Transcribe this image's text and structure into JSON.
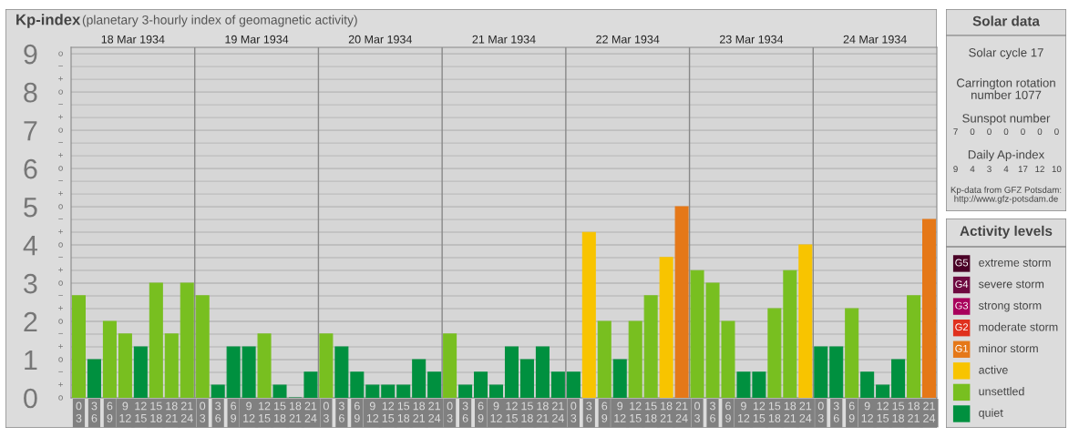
{
  "chart_data": [
    {
      "type": "bar",
      "title": "Kp-index",
      "subtitle": "(planetary 3-hourly index of geomagnetic activity)",
      "categories": [
        "0\n3",
        "3\n6",
        "6\n9",
        "9\n12",
        "12\n15",
        "15\n18",
        "18\n21",
        "21\n24",
        "0\n3",
        "3\n6",
        "6\n9",
        "9\n12",
        "12\n15",
        "15\n18",
        "18\n21",
        "21\n24",
        "0\n3",
        "3\n6",
        "6\n9",
        "9\n12",
        "12\n15",
        "15\n18",
        "18\n21",
        "21\n24",
        "0\n3",
        "3\n6",
        "6\n9",
        "9\n12",
        "12\n15",
        "15\n18",
        "18\n21",
        "21\n24",
        "0\n3",
        "3\n6",
        "6\n9",
        "9\n12",
        "12\n15",
        "15\n18",
        "18\n21",
        "21\n24",
        "0\n3",
        "3\n6",
        "6\n9",
        "9\n12",
        "12\n15",
        "15\n18",
        "18\n21",
        "21\n24",
        "0\n3",
        "3\n6",
        "6\n9",
        "9\n12",
        "12\n15",
        "15\n18",
        "18\n21",
        "21\n24"
      ],
      "annotations": [
        "18 Mar 1934",
        "19 Mar 1934",
        "20 Mar 1934",
        "21 Mar 1934",
        "22 Mar 1934",
        "23 Mar 1934",
        "24 Mar 1934",
        "o",
        "+",
        "−",
        "o",
        "+",
        "−",
        "o",
        "+",
        "−",
        "o",
        "+",
        "−",
        "o",
        "+",
        "−",
        "o",
        "+",
        "−",
        "o",
        "+",
        "−",
        "o",
        "+",
        "−",
        "o",
        "+",
        "−",
        "o"
      ],
      "series": [
        {
          "name": "extreme storm",
          "color": "#4a0026",
          "values": [
            null,
            null,
            null,
            null,
            null,
            null,
            null,
            null,
            null,
            null,
            null,
            null,
            null,
            null,
            null,
            null,
            null,
            null,
            null,
            null,
            null,
            null,
            null,
            null,
            null,
            null,
            null,
            null,
            null,
            null,
            null,
            null,
            null,
            null,
            null,
            null,
            null,
            null,
            null,
            null,
            null,
            null,
            null,
            null,
            null,
            null,
            null,
            null,
            null,
            null,
            null,
            null,
            null,
            null,
            null,
            null
          ]
        },
        {
          "name": "severe storm",
          "color": "#6e0a40",
          "values": [
            null,
            null,
            null,
            null,
            null,
            null,
            null,
            null,
            null,
            null,
            null,
            null,
            null,
            null,
            null,
            null,
            null,
            null,
            null,
            null,
            null,
            null,
            null,
            null,
            null,
            null,
            null,
            null,
            null,
            null,
            null,
            null,
            null,
            null,
            null,
            null,
            null,
            null,
            null,
            null,
            null,
            null,
            null,
            null,
            null,
            null,
            null,
            null,
            null,
            null,
            null,
            null,
            null,
            null,
            null,
            null
          ]
        },
        {
          "name": "strong storm",
          "color": "#a8005c",
          "values": [
            null,
            null,
            null,
            null,
            null,
            null,
            null,
            null,
            null,
            null,
            null,
            null,
            null,
            null,
            null,
            null,
            null,
            null,
            null,
            null,
            null,
            null,
            null,
            null,
            null,
            null,
            null,
            null,
            null,
            null,
            null,
            null,
            null,
            null,
            null,
            null,
            null,
            null,
            null,
            null,
            null,
            null,
            null,
            null,
            null,
            null,
            null,
            null,
            null,
            null,
            null,
            null,
            null,
            null,
            null,
            null
          ]
        },
        {
          "name": "moderate storm",
          "color": "#e0301e",
          "values": [
            null,
            null,
            null,
            null,
            null,
            null,
            null,
            null,
            null,
            null,
            null,
            null,
            null,
            null,
            null,
            null,
            null,
            null,
            null,
            null,
            null,
            null,
            null,
            null,
            null,
            null,
            null,
            null,
            null,
            null,
            null,
            null,
            null,
            null,
            null,
            null,
            null,
            null,
            null,
            null,
            null,
            null,
            null,
            null,
            null,
            null,
            null,
            null,
            null,
            null,
            null,
            null,
            null,
            null,
            null,
            null
          ]
        },
        {
          "name": "minor storm",
          "color": "#e57818",
          "values": [
            null,
            null,
            null,
            null,
            null,
            null,
            null,
            null,
            null,
            null,
            null,
            null,
            null,
            null,
            null,
            null,
            null,
            null,
            null,
            null,
            null,
            null,
            null,
            null,
            null,
            null,
            null,
            null,
            null,
            null,
            null,
            null,
            null,
            null,
            null,
            null,
            null,
            null,
            null,
            5,
            null,
            null,
            null,
            null,
            null,
            null,
            null,
            null,
            null,
            null,
            null,
            null,
            null,
            null,
            null,
            4.67
          ]
        },
        {
          "name": "active",
          "color": "#f8c400",
          "values": [
            null,
            null,
            null,
            null,
            null,
            null,
            null,
            null,
            null,
            null,
            null,
            null,
            null,
            null,
            null,
            null,
            null,
            null,
            null,
            null,
            null,
            null,
            null,
            null,
            null,
            null,
            null,
            null,
            null,
            null,
            null,
            null,
            null,
            4.33,
            null,
            null,
            null,
            null,
            3.67,
            null,
            null,
            null,
            null,
            null,
            null,
            null,
            null,
            4,
            null,
            null,
            null,
            null,
            null,
            null,
            null,
            null
          ]
        },
        {
          "name": "unsettled",
          "color": "#78bf20",
          "values": [
            2.67,
            null,
            2,
            1.67,
            null,
            3,
            1.67,
            3,
            2.67,
            null,
            null,
            null,
            1.67,
            null,
            null,
            null,
            1.67,
            null,
            null,
            null,
            null,
            null,
            null,
            null,
            1.67,
            null,
            null,
            null,
            null,
            null,
            null,
            null,
            null,
            null,
            2,
            null,
            2,
            2.67,
            null,
            null,
            3.33,
            3,
            2,
            null,
            null,
            2.33,
            3.33,
            null,
            null,
            null,
            2.33,
            null,
            null,
            null,
            2.67,
            null
          ]
        },
        {
          "name": "quiet",
          "color": "#00903f",
          "values": [
            null,
            1,
            null,
            null,
            1.33,
            null,
            null,
            null,
            null,
            0.33,
            1.33,
            1.33,
            null,
            0.33,
            0,
            0.67,
            null,
            1.33,
            0.67,
            0.33,
            0.33,
            0.33,
            1,
            0.67,
            null,
            0.33,
            0.67,
            0.33,
            1.33,
            1,
            1.33,
            0.67,
            0.67,
            null,
            null,
            1,
            null,
            null,
            null,
            null,
            null,
            null,
            null,
            0.67,
            0.67,
            null,
            null,
            null,
            1.33,
            1.33,
            null,
            0.67,
            0.33,
            1,
            null,
            null
          ]
        }
      ],
      "ylim": [
        0,
        9.17
      ],
      "yticks": [
        0,
        1,
        2,
        3,
        4,
        5,
        6,
        7,
        8,
        9
      ],
      "grid": "y",
      "legend": "right",
      "legend_title": "Activity levels"
    },
    {
      "type": "other",
      "title": "Solar data",
      "annotations": [
        "Solar cycle 17",
        "Carrington rotation\nnumber 1077",
        "Sunspot number",
        "7 0 0 0 0 0 0",
        "Daily Ap-index",
        "9 4 3 4 17 12 10",
        "Kp-data from GFZ Potsdam:\nhttp://www.gfz-potsdam.de"
      ]
    },
    {
      "type": "other",
      "annotations": [
        "G5",
        "G4",
        "G3",
        "G2",
        "G1"
      ]
    }
  ]
}
